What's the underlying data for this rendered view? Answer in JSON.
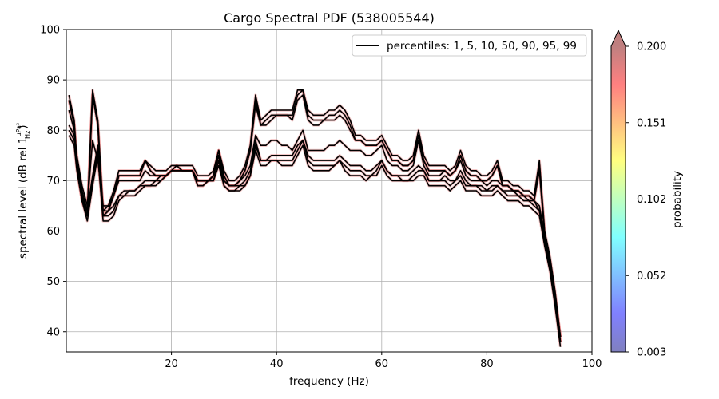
{
  "chart_data": {
    "type": "line",
    "title": "Cargo Spectral PDF (538005544)",
    "xlabel": "frequency (Hz)",
    "ylabel_prefix": "spectral level (dB rel 1",
    "ylabel_unit_num": "μPa²",
    "ylabel_unit_den": "Hz",
    "ylabel_suffix": ")",
    "xlim": [
      0,
      100
    ],
    "ylim": [
      36,
      100
    ],
    "xticks": [
      20,
      40,
      60,
      80,
      100
    ],
    "yticks": [
      40,
      50,
      60,
      70,
      80,
      90,
      100
    ],
    "grid": true,
    "legend": {
      "label": "percentiles: 1, 5, 10, 50, 90, 95, 99",
      "position": "top-right"
    },
    "line_color": "#000000",
    "colorbar": {
      "label": "probability",
      "ticks": [
        "0.003",
        "0.052",
        "0.102",
        "0.151",
        "0.200"
      ],
      "min": 0.003,
      "max": 0.2,
      "extend": "max"
    },
    "x": [
      0.5,
      1.5,
      2,
      3,
      4,
      5,
      6,
      7,
      8,
      9,
      10,
      11,
      12,
      13,
      14,
      15,
      16,
      17,
      18,
      19,
      20,
      21,
      22,
      23,
      24,
      25,
      26,
      27,
      28,
      29,
      30,
      31,
      32,
      33,
      34,
      35,
      36,
      37,
      38,
      39,
      40,
      41,
      42,
      43,
      44,
      45,
      46,
      47,
      48,
      49,
      50,
      51,
      52,
      53,
      54,
      55,
      56,
      57,
      58,
      59,
      60,
      61,
      62,
      63,
      64,
      65,
      66,
      67,
      68,
      69,
      70,
      71,
      72,
      73,
      74,
      75,
      76,
      77,
      78,
      79,
      80,
      81,
      82,
      83,
      84,
      85,
      86,
      87,
      88,
      89,
      90,
      91,
      92,
      93,
      94
    ],
    "series": [
      {
        "values": [
          79,
          77,
          72,
          66,
          62,
          69,
          75,
          62,
          62,
          63,
          66,
          67,
          67,
          67,
          68,
          69,
          69,
          69,
          70,
          71,
          72,
          72,
          72,
          72,
          72,
          69,
          69,
          70,
          70,
          73,
          69,
          68,
          68,
          68,
          69,
          71,
          76,
          73,
          73,
          74,
          74,
          73,
          73,
          73,
          75,
          77,
          73,
          72,
          72,
          72,
          72,
          73,
          74,
          72,
          71,
          71,
          71,
          70,
          71,
          71,
          73,
          71,
          70,
          70,
          70,
          70,
          70,
          71,
          71,
          69,
          69,
          69,
          69,
          68,
          69,
          70,
          68,
          68,
          68,
          67,
          67,
          67,
          68,
          67,
          66,
          66,
          66,
          65,
          65,
          64,
          63,
          57,
          52,
          45,
          37
        ]
      },
      {
        "values": [
          80,
          78,
          73,
          67,
          63,
          70,
          76,
          63,
          63,
          64,
          67,
          67,
          68,
          68,
          69,
          69,
          69,
          70,
          70,
          71,
          72,
          72,
          72,
          72,
          72,
          69,
          69,
          70,
          70,
          74,
          69,
          68,
          68,
          69,
          69,
          71,
          77,
          74,
          74,
          74,
          74,
          74,
          74,
          74,
          76,
          78,
          74,
          73,
          73,
          73,
          73,
          73,
          74,
          73,
          72,
          72,
          72,
          71,
          71,
          72,
          74,
          72,
          71,
          71,
          70,
          70,
          71,
          72,
          72,
          70,
          70,
          70,
          70,
          69,
          70,
          71,
          69,
          69,
          69,
          68,
          68,
          68,
          69,
          68,
          67,
          67,
          67,
          66,
          66,
          65,
          64,
          58,
          53,
          46,
          38
        ]
      },
      {
        "values": [
          81,
          79,
          74,
          68,
          64,
          71,
          77,
          64,
          64,
          65,
          67,
          68,
          68,
          68,
          69,
          70,
          70,
          70,
          71,
          71,
          72,
          72,
          72,
          72,
          72,
          70,
          70,
          70,
          71,
          75,
          70,
          69,
          69,
          69,
          70,
          72,
          78,
          74,
          74,
          75,
          75,
          75,
          75,
          75,
          77,
          78,
          75,
          74,
          74,
          74,
          74,
          74,
          75,
          74,
          73,
          73,
          73,
          72,
          72,
          73,
          74,
          72,
          71,
          71,
          71,
          71,
          72,
          73,
          72,
          70,
          70,
          70,
          71,
          70,
          70,
          72,
          70,
          69,
          69,
          69,
          68,
          69,
          69,
          68,
          68,
          68,
          67,
          67,
          66,
          66,
          64,
          59,
          54,
          47,
          39
        ]
      },
      {
        "values": [
          84,
          80,
          75,
          69,
          65,
          78,
          74,
          65,
          65,
          67,
          70,
          70,
          70,
          70,
          70,
          72,
          71,
          71,
          71,
          71,
          72,
          72,
          72,
          72,
          72,
          70,
          70,
          70,
          71,
          75,
          70,
          69,
          69,
          70,
          71,
          73,
          79,
          77,
          77,
          78,
          78,
          77,
          77,
          76,
          78,
          80,
          76,
          76,
          76,
          76,
          77,
          77,
          78,
          77,
          76,
          76,
          76,
          75,
          75,
          76,
          77,
          74,
          73,
          73,
          72,
          72,
          73,
          78,
          73,
          71,
          71,
          71,
          72,
          71,
          72,
          74,
          71,
          70,
          70,
          70,
          69,
          70,
          70,
          69,
          69,
          68,
          68,
          67,
          67,
          66,
          65,
          59,
          54,
          47,
          39
        ]
      },
      {
        "values": [
          86,
          81,
          73,
          66,
          63,
          87,
          81,
          63,
          64,
          67,
          71,
          71,
          71,
          71,
          71,
          74,
          72,
          71,
          71,
          71,
          72,
          73,
          72,
          72,
          72,
          70,
          70,
          70,
          71,
          76,
          71,
          69,
          69,
          70,
          72,
          76,
          85,
          81,
          81,
          82,
          83,
          83,
          83,
          82,
          86,
          87,
          82,
          81,
          81,
          82,
          82,
          82,
          83,
          82,
          80,
          78,
          78,
          77,
          77,
          77,
          78,
          76,
          74,
          74,
          73,
          73,
          74,
          79,
          74,
          72,
          72,
          72,
          72,
          71,
          72,
          75,
          72,
          71,
          71,
          70,
          70,
          71,
          73,
          69,
          69,
          68,
          68,
          67,
          67,
          66,
          72,
          59,
          54,
          47,
          38
        ]
      },
      {
        "values": [
          86,
          81,
          73,
          66,
          63,
          87,
          81,
          63,
          64,
          67,
          71,
          71,
          71,
          71,
          71,
          74,
          72,
          71,
          71,
          71,
          72,
          73,
          72,
          72,
          72,
          70,
          70,
          70,
          71,
          76,
          71,
          69,
          69,
          70,
          72,
          76,
          86,
          81,
          82,
          83,
          83,
          83,
          83,
          83,
          87,
          88,
          83,
          82,
          82,
          82,
          83,
          83,
          84,
          83,
          81,
          78,
          78,
          77,
          77,
          77,
          78,
          76,
          74,
          74,
          73,
          73,
          74,
          79,
          74,
          72,
          72,
          72,
          72,
          71,
          72,
          75,
          72,
          71,
          71,
          70,
          70,
          71,
          73,
          69,
          69,
          68,
          68,
          67,
          67,
          66,
          73,
          59,
          54,
          47,
          38
        ]
      },
      {
        "values": [
          87,
          82,
          74,
          67,
          64,
          88,
          82,
          64,
          65,
          68,
          72,
          72,
          72,
          72,
          72,
          74,
          73,
          72,
          72,
          72,
          73,
          73,
          73,
          73,
          73,
          71,
          71,
          71,
          72,
          76,
          72,
          70,
          70,
          71,
          73,
          77,
          87,
          82,
          83,
          84,
          84,
          84,
          84,
          84,
          88,
          88,
          84,
          83,
          83,
          83,
          84,
          84,
          85,
          84,
          82,
          79,
          79,
          78,
          78,
          78,
          79,
          77,
          75,
          75,
          74,
          74,
          75,
          80,
          75,
          73,
          73,
          73,
          73,
          72,
          73,
          76,
          73,
          72,
          72,
          71,
          71,
          72,
          74,
          70,
          70,
          69,
          69,
          68,
          68,
          67,
          74,
          60,
          55,
          48,
          39
        ]
      }
    ]
  }
}
